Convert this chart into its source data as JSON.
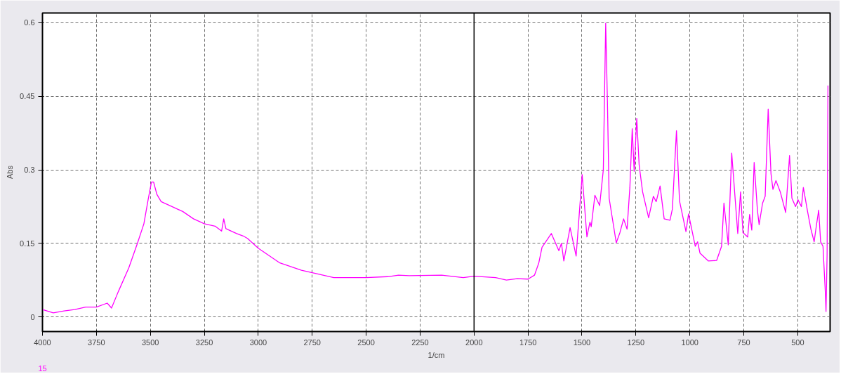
{
  "chart_data": {
    "type": "line",
    "xlabel": "1/cm",
    "ylabel": "Abs",
    "xlim": [
      4000,
      350
    ],
    "ylim": [
      -0.03,
      0.62
    ],
    "xticks": [
      4000,
      3750,
      3500,
      3250,
      3000,
      2750,
      2500,
      2250,
      2000,
      1750,
      1500,
      1250,
      1000,
      750,
      500
    ],
    "yticks": [
      0,
      0.15,
      0.3,
      0.45,
      0.6
    ],
    "grid": true,
    "line_style": "solid",
    "marker": "none",
    "ref_lines": [
      {
        "axis": "x",
        "value": 2000,
        "color": "#000000",
        "line_style": "solid"
      }
    ],
    "series": [
      {
        "name": "15",
        "color": "#ff00ff",
        "x": [
          4000,
          3950,
          3900,
          3850,
          3800,
          3750,
          3700,
          3680,
          3650,
          3600,
          3560,
          3530,
          3510,
          3495,
          3485,
          3470,
          3450,
          3400,
          3350,
          3300,
          3250,
          3200,
          3170,
          3160,
          3150,
          3100,
          3070,
          3050,
          3000,
          2950,
          2900,
          2800,
          2750,
          2650,
          2500,
          2400,
          2350,
          2300,
          2150,
          2050,
          2000,
          1900,
          1850,
          1800,
          1750,
          1720,
          1700,
          1685,
          1642,
          1607,
          1595,
          1584,
          1555,
          1527,
          1499,
          1477,
          1463,
          1457,
          1440,
          1418,
          1401,
          1390,
          1382,
          1374,
          1341,
          1324,
          1307,
          1291,
          1278,
          1267,
          1258,
          1246,
          1235,
          1219,
          1191,
          1169,
          1156,
          1138,
          1119,
          1092,
          1081,
          1062,
          1048,
          1018,
          1006,
          975,
          964,
          953,
          914,
          876,
          853,
          842,
          822,
          806,
          778,
          765,
          754,
          732,
          723,
          713,
          702,
          687,
          679,
          663,
          651,
          637,
          624,
          615,
          601,
          581,
          556,
          538,
          527,
          510,
          499,
          483,
          474,
          455,
          439,
          424,
          416,
          403,
          394,
          383,
          372,
          369,
          364,
          360
        ],
        "values": [
          0.015,
          0.008,
          0.012,
          0.015,
          0.02,
          0.02,
          0.028,
          0.018,
          0.05,
          0.1,
          0.15,
          0.19,
          0.24,
          0.275,
          0.275,
          0.25,
          0.235,
          0.225,
          0.215,
          0.2,
          0.19,
          0.185,
          0.175,
          0.2,
          0.18,
          0.17,
          0.165,
          0.16,
          0.14,
          0.125,
          0.11,
          0.095,
          0.09,
          0.08,
          0.08,
          0.082,
          0.085,
          0.084,
          0.085,
          0.08,
          0.083,
          0.08,
          0.075,
          0.078,
          0.077,
          0.085,
          0.11,
          0.142,
          0.17,
          0.135,
          0.15,
          0.114,
          0.182,
          0.124,
          0.29,
          0.163,
          0.193,
          0.184,
          0.248,
          0.227,
          0.3,
          0.599,
          0.44,
          0.242,
          0.151,
          0.172,
          0.2,
          0.179,
          0.264,
          0.384,
          0.297,
          0.405,
          0.31,
          0.255,
          0.202,
          0.246,
          0.235,
          0.267,
          0.2,
          0.197,
          0.22,
          0.38,
          0.237,
          0.174,
          0.21,
          0.144,
          0.153,
          0.13,
          0.114,
          0.115,
          0.144,
          0.232,
          0.147,
          0.334,
          0.17,
          0.255,
          0.172,
          0.163,
          0.209,
          0.177,
          0.315,
          0.218,
          0.188,
          0.232,
          0.246,
          0.424,
          0.292,
          0.26,
          0.278,
          0.255,
          0.213,
          0.329,
          0.242,
          0.225,
          0.239,
          0.225,
          0.264,
          0.216,
          0.179,
          0.153,
          0.179,
          0.218,
          0.153,
          0.144,
          0.048,
          0.011,
          0.126,
          0.472
        ]
      }
    ]
  }
}
